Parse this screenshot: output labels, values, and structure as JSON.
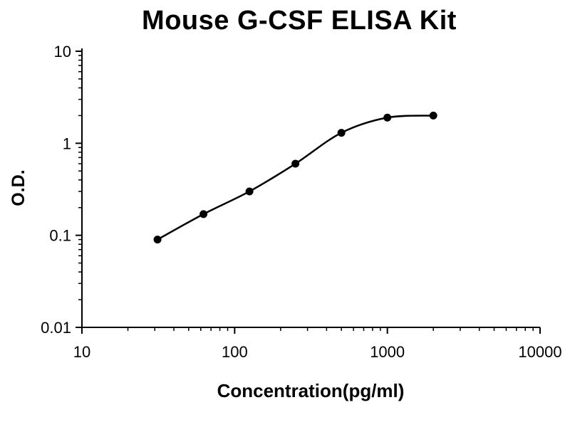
{
  "chart": {
    "title": "Mouse G-CSF ELISA Kit",
    "xlabel": "Concentration(pg/ml)",
    "ylabel": "O.D."
  },
  "chart_data": {
    "type": "scatter",
    "title": "Mouse G-CSF ELISA Kit",
    "xlabel": "Concentration(pg/ml)",
    "ylabel": "O.D.",
    "x_scale": "log",
    "y_scale": "log",
    "x": [
      31.25,
      62.5,
      125,
      250,
      500,
      1000,
      2000
    ],
    "y": [
      0.09,
      0.17,
      0.3,
      0.6,
      1.3,
      1.9,
      2.0
    ],
    "xlim": [
      10,
      10000
    ],
    "ylim": [
      0.01,
      10
    ],
    "x_ticks": [
      10,
      100,
      1000,
      10000
    ],
    "x_tick_labels": [
      "10",
      "100",
      "1000",
      "10000"
    ],
    "y_ticks": [
      0.01,
      0.1,
      1,
      10
    ],
    "y_tick_labels": [
      "0.01",
      "0.1",
      "1",
      "10"
    ],
    "grid": false,
    "legend": "none",
    "marker_color": "#000000",
    "line_color": "#000000",
    "axis_color": "#000000",
    "background_color": "#ffffff"
  }
}
